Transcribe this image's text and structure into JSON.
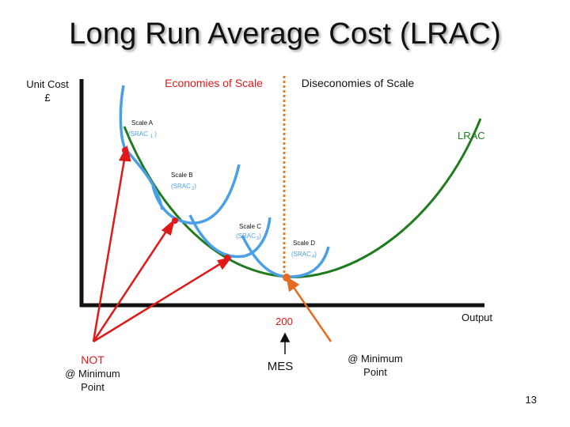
{
  "title": "Long Run Average Cost (LRAC)",
  "y_axis_label": [
    "Unit Cost",
    "£"
  ],
  "x_axis_label": "Output",
  "regions": {
    "economies": "Economies of Scale",
    "diseconomies": "Diseconomies of Scale"
  },
  "curves": {
    "lrac": "LRAC",
    "scale_a": [
      "Scale A",
      "(SRAC",
      "1",
      ")"
    ],
    "scale_b": [
      "Scale B",
      "(SRAC",
      "2",
      ")"
    ],
    "scale_c": [
      "Scale C",
      "(SRAC",
      "3",
      ")"
    ],
    "scale_d": [
      "Scale D",
      "(SRAC",
      "4",
      ")"
    ]
  },
  "mes_output": "200",
  "mes_label": "MES",
  "not_minimum": {
    "line1": "NOT",
    "line2": "@ Minimum",
    "line3": "Point"
  },
  "at_minimum": {
    "line1": "@ Minimum",
    "line2": "Point"
  },
  "slide_number": "13",
  "colors": {
    "lrac": "#1e7b1e",
    "srac": "#4a9fe6",
    "economies": "#e01818",
    "mes": "#e46b20",
    "divider": "#d8802a",
    "axis": "#111111"
  }
}
